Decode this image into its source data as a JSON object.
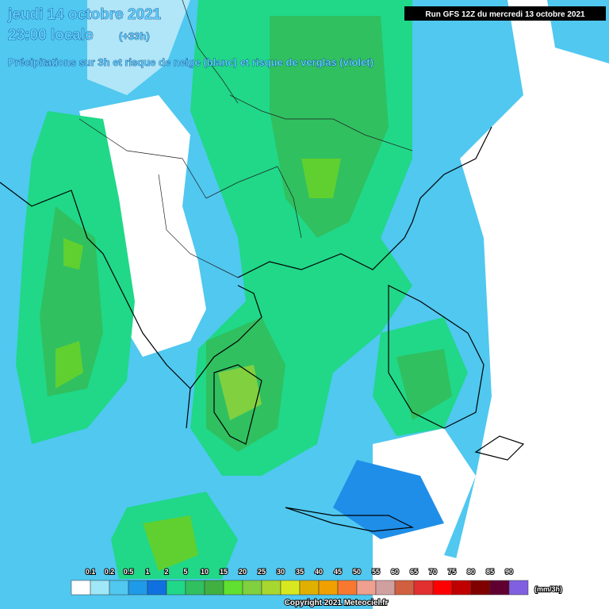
{
  "header": {
    "date": "jeudi 14 octobre 2021",
    "time": "23:00 locale",
    "offset": "(+33h)",
    "subtitle": "Précipitations sur 3h et risque de neige (blanc) et risque de verglas (violet)",
    "run": "Run GFS 12Z du mercredi 13 octobre 2021"
  },
  "legend": {
    "labels": [
      "0.1",
      "0.2",
      "0.5",
      "1",
      "2",
      "5",
      "10",
      "15",
      "20",
      "25",
      "30",
      "35",
      "40",
      "45",
      "50",
      "55",
      "60",
      "65",
      "70",
      "75",
      "80",
      "85",
      "90"
    ],
    "unit": "(mm/3h)"
  },
  "footer": {
    "copyright": "Copyright 2021 Meteociel.fr"
  }
}
